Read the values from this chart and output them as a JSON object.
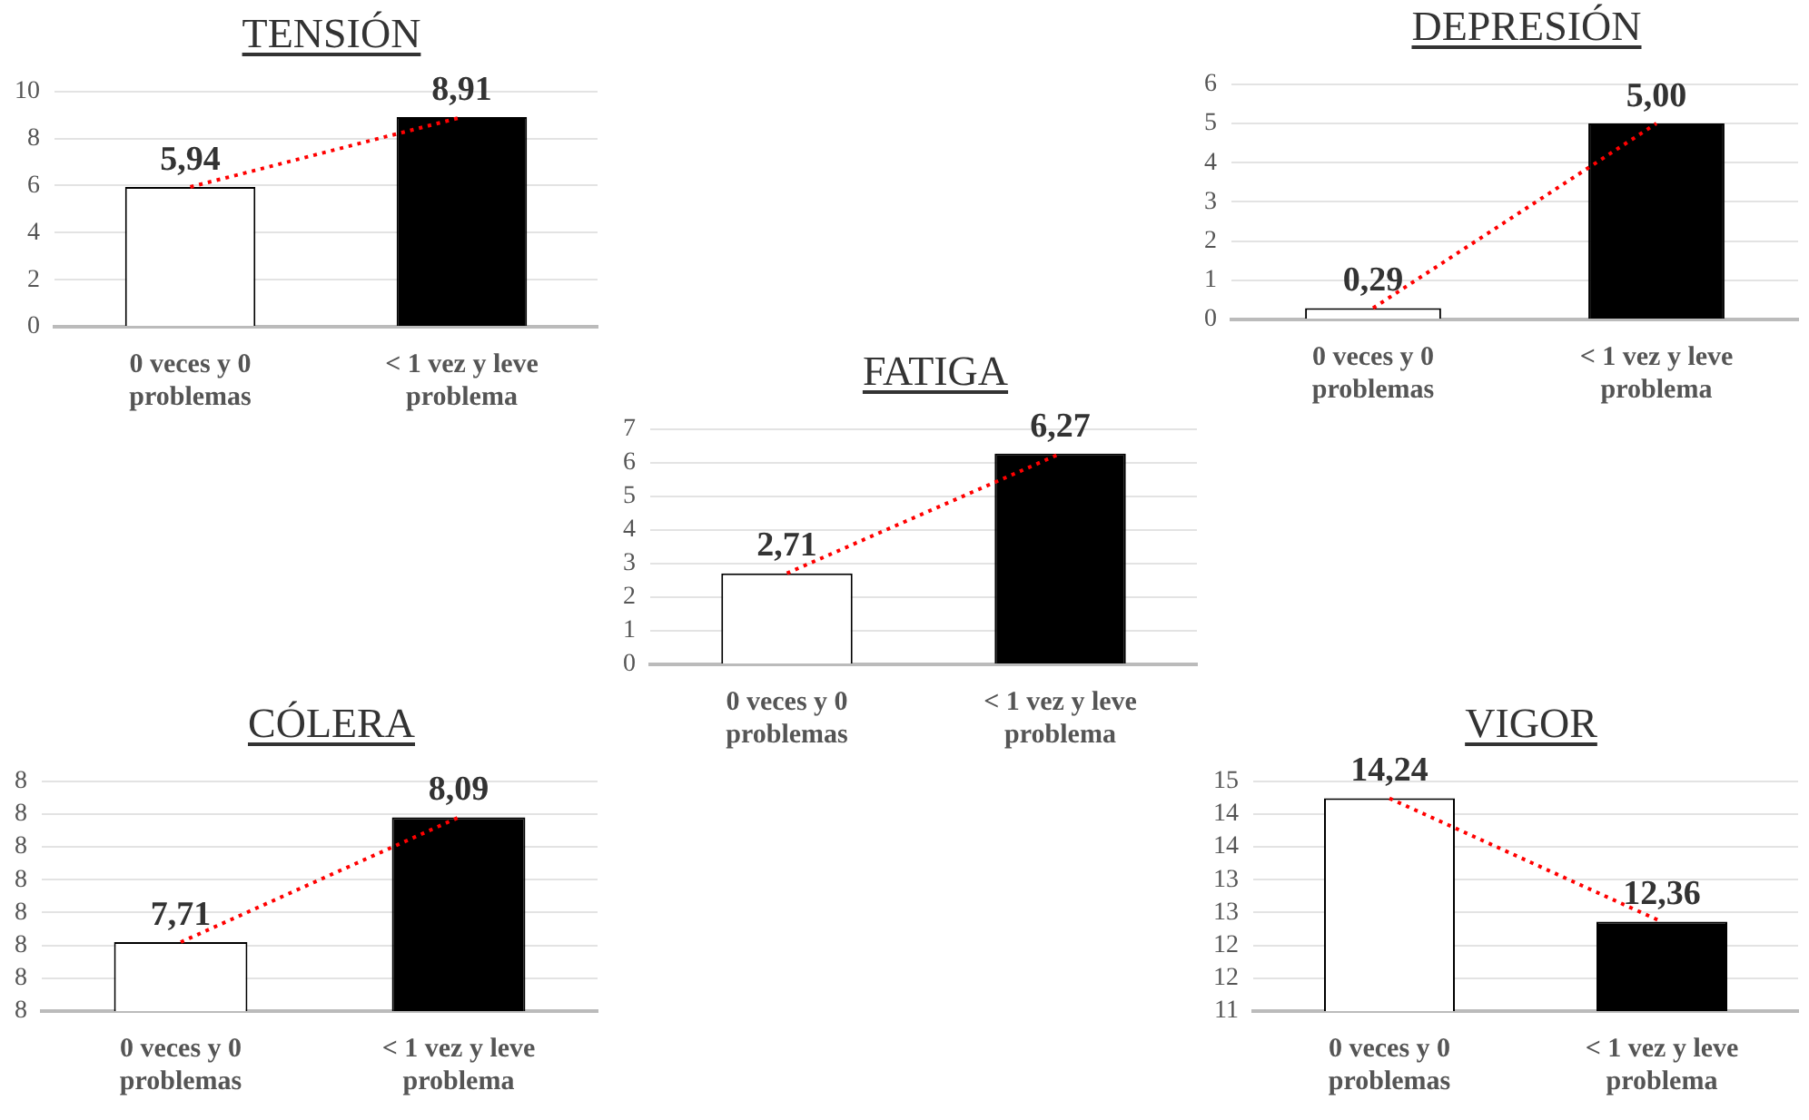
{
  "chart_data": [
    {
      "type": "bar",
      "title": "TENSIÓN",
      "categories": [
        "0 veces y 0 problemas",
        "< 1 vez y leve problema"
      ],
      "ylim": [
        0,
        10
      ],
      "yticks": [
        0,
        2,
        4,
        6,
        8,
        10
      ],
      "grid": "y",
      "series": [
        {
          "type": "bar",
          "colors": [
            "#ffffff",
            "#000000"
          ],
          "values": [
            5.94,
            8.91
          ],
          "value_labels": [
            "5,94",
            "8,91"
          ]
        },
        {
          "type": "line",
          "color": "#ff0000",
          "values": [
            5.94,
            8.91
          ],
          "line_style": "dotted",
          "marker": "none"
        }
      ]
    },
    {
      "type": "bar",
      "title": "DEPRESIÓN",
      "categories": [
        "0 veces y 0 problemas",
        "< 1 vez y leve problema"
      ],
      "ylim": [
        0,
        6
      ],
      "yticks": [
        0,
        1,
        2,
        3,
        4,
        5,
        6
      ],
      "grid": "y",
      "series": [
        {
          "type": "bar",
          "colors": [
            "#ffffff",
            "#000000"
          ],
          "values": [
            0.29,
            5.0
          ],
          "value_labels": [
            "0,29",
            "5,00"
          ]
        },
        {
          "type": "line",
          "color": "#ff0000",
          "values": [
            0.29,
            5.0
          ],
          "line_style": "dotted",
          "marker": "none"
        }
      ]
    },
    {
      "type": "bar",
      "title": "FATIGA",
      "categories": [
        "0 veces y 0 problemas",
        "< 1 vez y leve problema"
      ],
      "ylim": [
        0,
        7
      ],
      "yticks": [
        0,
        1,
        2,
        3,
        4,
        5,
        6,
        7
      ],
      "grid": "y",
      "series": [
        {
          "type": "bar",
          "colors": [
            "#ffffff",
            "#000000"
          ],
          "values": [
            2.71,
            6.27
          ],
          "value_labels": [
            "2,71",
            "6,27"
          ]
        },
        {
          "type": "line",
          "color": "#ff0000",
          "values": [
            2.71,
            6.27
          ],
          "line_style": "dotted",
          "marker": "none"
        }
      ]
    },
    {
      "type": "bar",
      "title": "CÓLERA",
      "categories": [
        "0 veces y 0 problemas",
        "< 1 vez y leve problema"
      ],
      "ylim": [
        7.5,
        8.2
      ],
      "yticks": [
        {
          "value": 7.5,
          "label": "8"
        },
        {
          "value": 7.6,
          "label": "8"
        },
        {
          "value": 7.7,
          "label": "8"
        },
        {
          "value": 7.8,
          "label": "8"
        },
        {
          "value": 7.9,
          "label": "8"
        },
        {
          "value": 8.0,
          "label": "8"
        },
        {
          "value": 8.1,
          "label": "8"
        },
        {
          "value": 8.2,
          "label": "8"
        }
      ],
      "grid": "y",
      "series": [
        {
          "type": "bar",
          "colors": [
            "#ffffff",
            "#000000"
          ],
          "values": [
            7.71,
            8.09
          ],
          "value_labels": [
            "7,71",
            "8,09"
          ]
        },
        {
          "type": "line",
          "color": "#ff0000",
          "values": [
            7.71,
            8.09
          ],
          "line_style": "dotted",
          "marker": "none"
        }
      ]
    },
    {
      "type": "bar",
      "title": "VIGOR",
      "categories": [
        "0 veces y 0 problemas",
        "< 1 vez y leve problema"
      ],
      "ylim": [
        11,
        14.5
      ],
      "yticks": [
        11,
        {
          "value": 11.5,
          "label": "12"
        },
        12,
        {
          "value": 12.5,
          "label": "13"
        },
        13,
        {
          "value": 13.5,
          "label": "14"
        },
        14,
        {
          "value": 14.5,
          "label": "15"
        }
      ],
      "grid": "y",
      "series": [
        {
          "type": "bar",
          "colors": [
            "#ffffff",
            "#000000"
          ],
          "values": [
            14.24,
            12.36
          ],
          "value_labels": [
            "14,24",
            "12,36"
          ]
        },
        {
          "type": "line",
          "color": "#ff0000",
          "values": [
            14.24,
            12.36
          ],
          "line_style": "dotted",
          "marker": "none"
        }
      ]
    }
  ]
}
